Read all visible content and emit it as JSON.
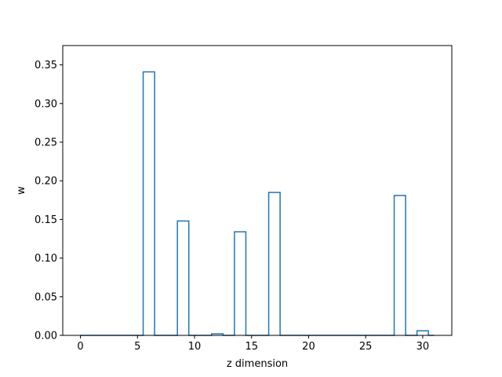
{
  "chart_data": {
    "type": "bar",
    "style": "step-outline",
    "title": "",
    "xlabel": "z dimension",
    "ylabel": "w",
    "xlim": [
      -1.55,
      32.55
    ],
    "ylim": [
      0,
      0.375
    ],
    "xticks": [
      0,
      5,
      10,
      15,
      20,
      25,
      30
    ],
    "yticks": [
      0.0,
      0.05,
      0.1,
      0.15,
      0.2,
      0.25,
      0.3,
      0.35
    ],
    "ytick_labels": [
      "0.00",
      "0.05",
      "0.10",
      "0.15",
      "0.20",
      "0.25",
      "0.30",
      "0.35"
    ],
    "grid": false,
    "line_color": "#1f77b4",
    "x": [
      0,
      1,
      2,
      3,
      4,
      5,
      6,
      7,
      8,
      9,
      10,
      11,
      12,
      13,
      14,
      15,
      16,
      17,
      18,
      19,
      20,
      21,
      22,
      23,
      24,
      25,
      26,
      27,
      28,
      29,
      30,
      31
    ],
    "values": [
      0,
      0,
      0,
      0,
      0,
      0,
      0.341,
      0,
      0,
      0.148,
      0,
      0,
      0.002,
      0,
      0.134,
      0,
      0,
      0.185,
      0,
      0,
      0,
      0,
      0,
      0,
      0,
      0,
      0,
      0,
      0.181,
      0,
      0.006,
      0
    ]
  }
}
